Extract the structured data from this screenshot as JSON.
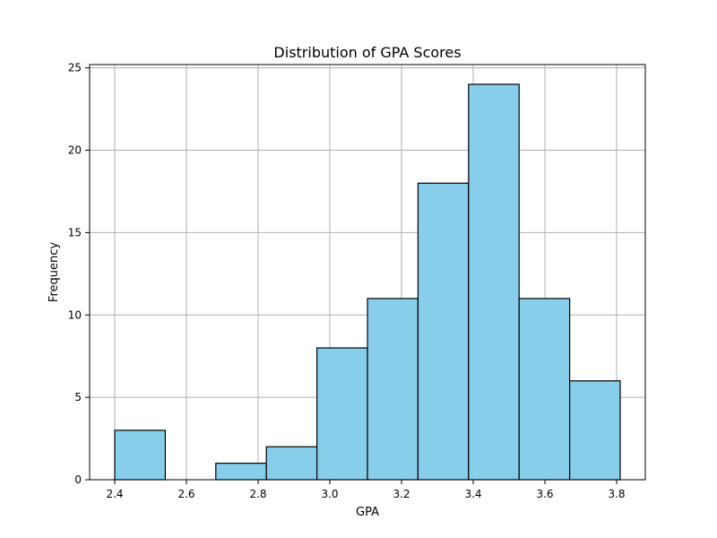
{
  "chart_data": {
    "type": "bar",
    "title": "Distribution of GPA Scores",
    "xlabel": "GPA",
    "ylabel": "Frequency",
    "xlim": [
      2.33,
      3.88
    ],
    "ylim": [
      0,
      25.2
    ],
    "grid": true,
    "bar_color": "#87CEEB",
    "edge_color": "#000000",
    "bins": [
      {
        "x0": 2.4,
        "x1": 2.541,
        "count": 3
      },
      {
        "x0": 2.541,
        "x1": 2.682,
        "count": 0
      },
      {
        "x0": 2.682,
        "x1": 2.823,
        "count": 1
      },
      {
        "x0": 2.823,
        "x1": 2.964,
        "count": 2
      },
      {
        "x0": 2.964,
        "x1": 3.105,
        "count": 8
      },
      {
        "x0": 3.105,
        "x1": 3.246,
        "count": 11
      },
      {
        "x0": 3.246,
        "x1": 3.387,
        "count": 18
      },
      {
        "x0": 3.387,
        "x1": 3.528,
        "count": 24
      },
      {
        "x0": 3.528,
        "x1": 3.669,
        "count": 11
      },
      {
        "x0": 3.669,
        "x1": 3.81,
        "count": 6
      }
    ],
    "xticks": [
      2.4,
      2.6,
      2.8,
      3.0,
      3.2,
      3.4,
      3.6,
      3.8
    ],
    "xtick_labels": [
      "2.4",
      "2.6",
      "2.8",
      "3.0",
      "3.2",
      "3.4",
      "3.6",
      "3.8"
    ],
    "yticks": [
      0,
      5,
      10,
      15,
      20,
      25
    ],
    "ytick_labels": [
      "0",
      "5",
      "10",
      "15",
      "20",
      "25"
    ]
  }
}
